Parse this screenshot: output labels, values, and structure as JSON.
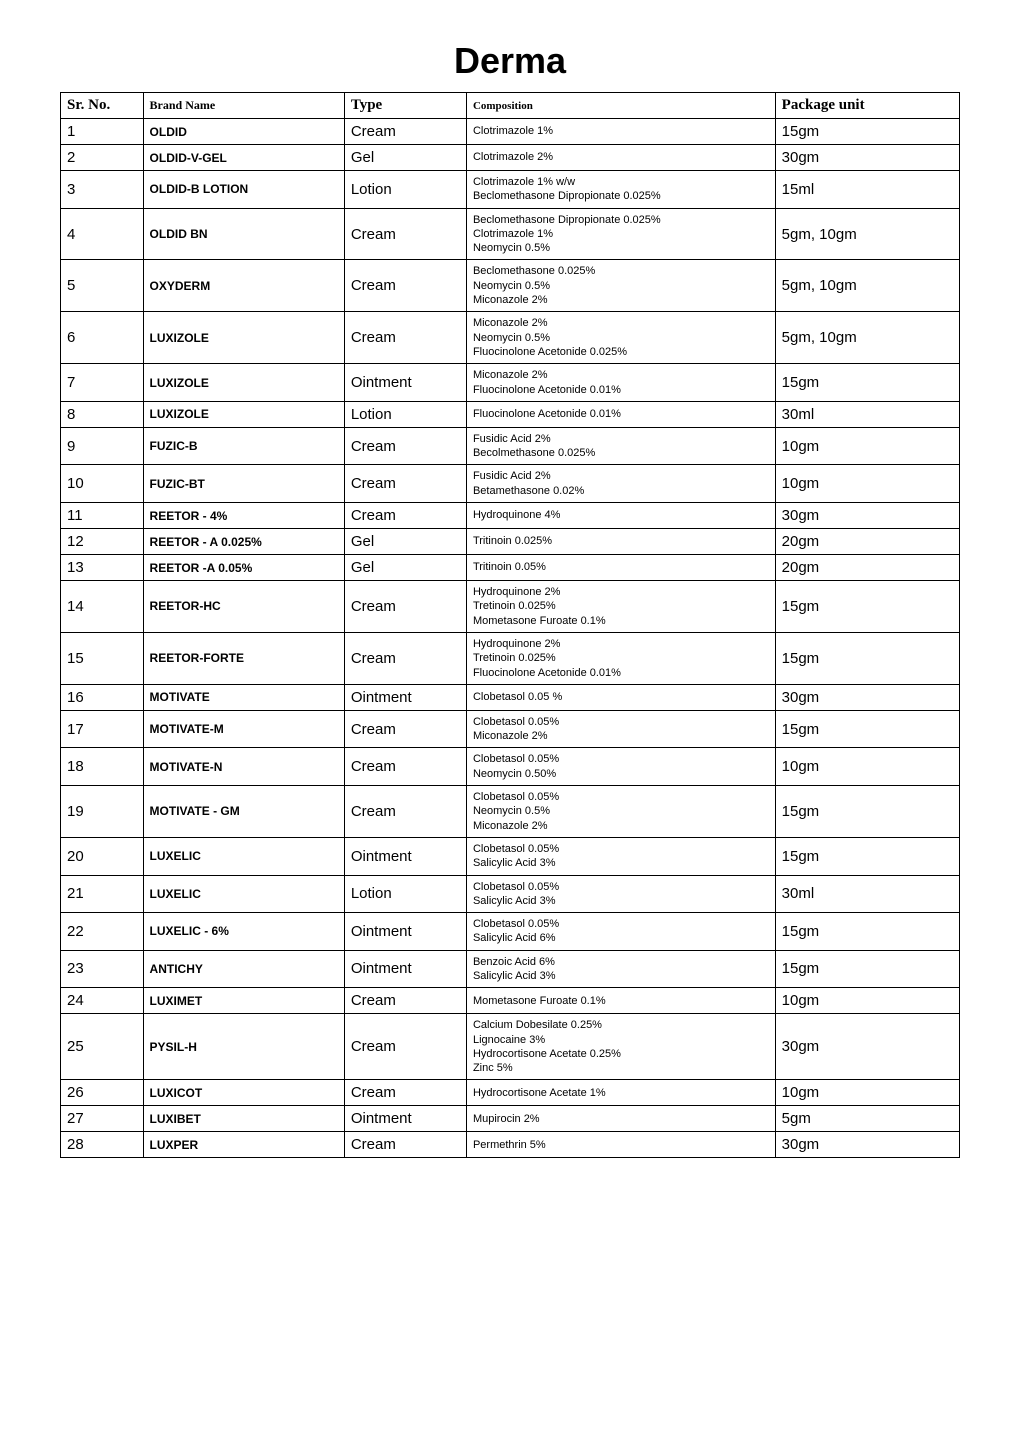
{
  "title": "Derma",
  "columns": [
    "Sr. No.",
    "Brand Name",
    "Type",
    "Composition",
    "Package unit"
  ],
  "rows": [
    {
      "sr": "1",
      "brand": "OLDID",
      "type": "Cream",
      "comp": "Clotrimazole 1%",
      "pkg": "15gm"
    },
    {
      "sr": "2",
      "brand": "OLDID-V-GEL",
      "type": "Gel",
      "comp": "Clotrimazole 2%",
      "pkg": "30gm"
    },
    {
      "sr": "3",
      "brand": "OLDID-B LOTION",
      "type": "Lotion",
      "comp": "Clotrimazole 1% w/w\nBeclomethasone Dipropionate 0.025%",
      "pkg": "15ml"
    },
    {
      "sr": "4",
      "brand": "OLDID BN",
      "type": "Cream",
      "comp": "Beclomethasone Dipropionate 0.025%\nClotrimazole 1%\nNeomycin 0.5%",
      "pkg": "5gm, 10gm"
    },
    {
      "sr": "5",
      "brand": "OXYDERM",
      "type": "Cream",
      "comp": "Beclomethasone 0.025%\nNeomycin 0.5%\nMiconazole 2%",
      "pkg": "5gm, 10gm"
    },
    {
      "sr": "6",
      "brand": "LUXIZOLE",
      "type": "Cream",
      "comp": "Miconazole 2%\nNeomycin 0.5%\nFluocinolone Acetonide 0.025%",
      "pkg": "5gm, 10gm"
    },
    {
      "sr": "7",
      "brand": "LUXIZOLE",
      "type": "Ointment",
      "comp": "Miconazole 2%\nFluocinolone Acetonide 0.01%",
      "pkg": "15gm"
    },
    {
      "sr": "8",
      "brand": "LUXIZOLE",
      "type": "Lotion",
      "comp": "Fluocinolone Acetonide 0.01%",
      "pkg": "30ml"
    },
    {
      "sr": "9",
      "brand": "FUZIC-B",
      "type": "Cream",
      "comp": "Fusidic Acid 2%\nBecolmethasone 0.025%",
      "pkg": "10gm"
    },
    {
      "sr": "10",
      "brand": "FUZIC-BT",
      "type": "Cream",
      "comp": "Fusidic Acid 2%\nBetamethasone 0.02%",
      "pkg": "10gm"
    },
    {
      "sr": "11",
      "brand": "REETOR - 4%",
      "type": "Cream",
      "comp": "Hydroquinone 4%",
      "pkg": "30gm"
    },
    {
      "sr": "12",
      "brand": "REETOR - A 0.025%",
      "type": "Gel",
      "comp": "Tritinoin 0.025%",
      "pkg": "20gm"
    },
    {
      "sr": "13",
      "brand": "REETOR -A 0.05%",
      "type": "Gel",
      "comp": "Tritinoin 0.05%",
      "pkg": "20gm"
    },
    {
      "sr": "14",
      "brand": "REETOR-HC",
      "type": "Cream",
      "comp": "Hydroquinone 2%\nTretinoin 0.025%\nMometasone Furoate 0.1%",
      "pkg": "15gm"
    },
    {
      "sr": "15",
      "brand": "REETOR-FORTE",
      "type": "Cream",
      "comp": "Hydroquinone 2%\nTretinoin 0.025%\nFluocinolone Acetonide 0.01%",
      "pkg": "15gm"
    },
    {
      "sr": "16",
      "brand": "MOTIVATE",
      "type": "Ointment",
      "comp": "Clobetasol 0.05 %",
      "pkg": "30gm"
    },
    {
      "sr": "17",
      "brand": "MOTIVATE-M",
      "type": "Cream",
      "comp": "Clobetasol 0.05%\nMiconazole 2%",
      "pkg": "15gm"
    },
    {
      "sr": "18",
      "brand": "MOTIVATE-N",
      "type": "Cream",
      "comp": "Clobetasol  0.05%\nNeomycin 0.50%",
      "pkg": "10gm"
    },
    {
      "sr": "19",
      "brand": "MOTIVATE  - GM",
      "type": "Cream",
      "comp": "Clobetasol 0.05%\nNeomycin 0.5%\nMiconazole 2%",
      "pkg": "15gm"
    },
    {
      "sr": "20",
      "brand": "LUXELIC",
      "type": "Ointment",
      "comp": "Clobetasol 0.05%\nSalicylic Acid 3%",
      "pkg": "15gm"
    },
    {
      "sr": "21",
      "brand": "LUXELIC",
      "type": "Lotion",
      "comp": "Clobetasol 0.05%\nSalicylic Acid 3%",
      "pkg": "30ml"
    },
    {
      "sr": "22",
      "brand": "LUXELIC - 6%",
      "type": "Ointment",
      "comp": "Clobetasol 0.05%\nSalicylic Acid 6%",
      "pkg": "15gm"
    },
    {
      "sr": "23",
      "brand": "ANTICHY",
      "type": "Ointment",
      "comp": " Benzoic Acid 6%\nSalicylic Acid 3%",
      "pkg": "15gm"
    },
    {
      "sr": "24",
      "brand": "LUXIMET",
      "type": "Cream",
      "comp": " Mometasone Furoate 0.1%",
      "pkg": "10gm"
    },
    {
      "sr": "25",
      "brand": "PYSIL-H",
      "type": "Cream",
      "comp": "Calcium Dobesilate 0.25%\nLignocaine 3%\nHydrocortisone Acetate 0.25%\nZinc 5%",
      "pkg": "30gm"
    },
    {
      "sr": "26",
      "brand": "LUXICOT",
      "type": "Cream",
      "comp": "Hydrocortisone Acetate 1%",
      "pkg": "10gm"
    },
    {
      "sr": "27",
      "brand": "LUXIBET",
      "type": "Ointment",
      "comp": "Mupirocin 2%",
      "pkg": "5gm"
    },
    {
      "sr": "28",
      "brand": "LUXPER",
      "type": "Cream",
      "comp": "Permethrin 5%",
      "pkg": "30gm"
    }
  ],
  "styling": {
    "title_fontsize": 36,
    "header_font": "Times New Roman",
    "header_fontsize": 17,
    "body_font": "Arial",
    "sr_fontsize": 15,
    "brand_fontsize": 12,
    "type_fontsize": 15,
    "comp_fontsize": 11,
    "pkg_fontsize": 15,
    "border_color": "#000000",
    "background_color": "#ffffff",
    "col_widths": {
      "sr": 60,
      "brand": 165,
      "type": 95,
      "comp": 260,
      "pkg": 150
    }
  }
}
